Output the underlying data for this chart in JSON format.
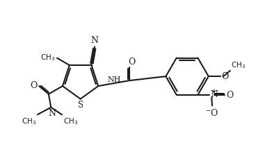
{
  "bg_color": "#ffffff",
  "line_color": "#1a1a1a",
  "line_width": 1.5,
  "fig_width": 3.81,
  "fig_height": 2.26,
  "dpi": 100,
  "xlim": [
    0,
    10
  ],
  "ylim": [
    0,
    6
  ]
}
